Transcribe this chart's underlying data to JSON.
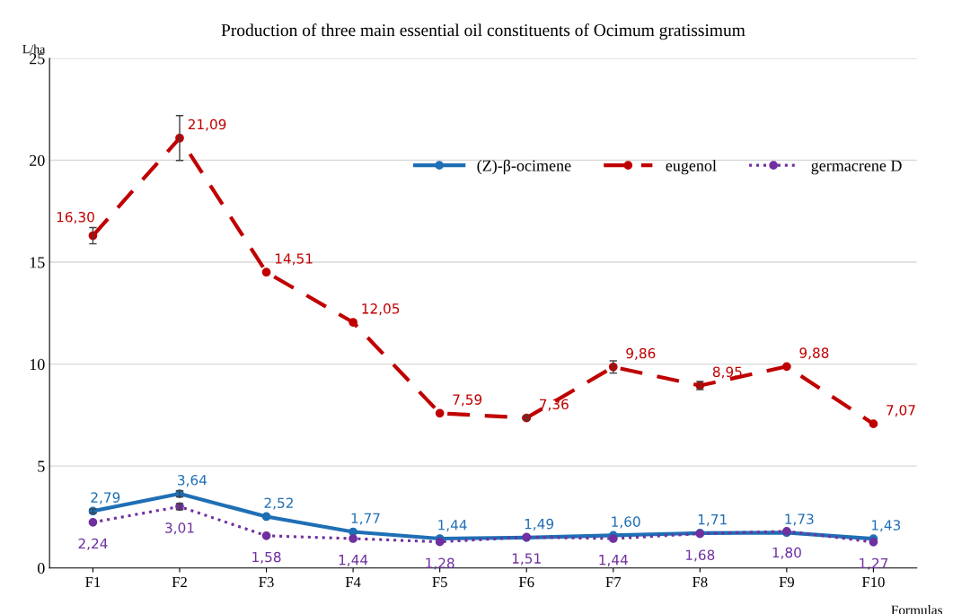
{
  "chart_data": {
    "type": "line",
    "title": "Production of three main essential oil constituents of Ocimum gratissimum",
    "xlabel": "Formulas",
    "ylabel": "L/ha",
    "categories": [
      "F1",
      "F2",
      "F3",
      "F4",
      "F5",
      "F6",
      "F7",
      "F8",
      "F9",
      "F10"
    ],
    "series": [
      {
        "name": "(Z)-β-ocimene",
        "color": "#1f6fb5",
        "line_style": "solid",
        "values": [
          2.79,
          3.64,
          2.52,
          1.77,
          1.44,
          1.49,
          1.6,
          1.71,
          1.73,
          1.43
        ],
        "errors": [
          0.1,
          0.15,
          null,
          null,
          null,
          null,
          null,
          null,
          null,
          null
        ],
        "value_labels": [
          "2,79",
          "3,64",
          "2,52",
          "1,77",
          "1,44",
          "1,49",
          "1,60",
          "1,71",
          "1,73",
          "1,43"
        ]
      },
      {
        "name": "eugenol",
        "color": "#c00000",
        "line_style": "dashed",
        "values": [
          16.3,
          21.09,
          14.51,
          12.05,
          7.59,
          7.36,
          9.86,
          8.95,
          9.88,
          7.07
        ],
        "errors": [
          0.4,
          1.1,
          null,
          null,
          null,
          0.1,
          0.3,
          0.2,
          null,
          null
        ],
        "value_labels": [
          "16,30",
          "21,09",
          "14,51",
          "12,05",
          "7,59",
          "7,36",
          "9,86",
          "8,95",
          "9,88",
          "7,07"
        ]
      },
      {
        "name": "germacrene D",
        "color": "#7030a0",
        "line_style": "dotted",
        "values": [
          2.24,
          3.01,
          1.58,
          1.44,
          1.28,
          1.51,
          1.44,
          1.68,
          1.8,
          1.27
        ],
        "errors": [
          null,
          0.15,
          null,
          null,
          null,
          null,
          null,
          null,
          null,
          null
        ],
        "value_labels": [
          "2,24",
          "3,01",
          "1,58",
          "1,44",
          "1,28",
          "1,51",
          "1,44",
          "1,68",
          "1,80",
          "1,27"
        ]
      }
    ],
    "ylim": [
      0,
      25
    ],
    "yticks": [
      0,
      5,
      10,
      15,
      20,
      25
    ],
    "grid": "y",
    "legend": "top right",
    "marker": "circle"
  }
}
